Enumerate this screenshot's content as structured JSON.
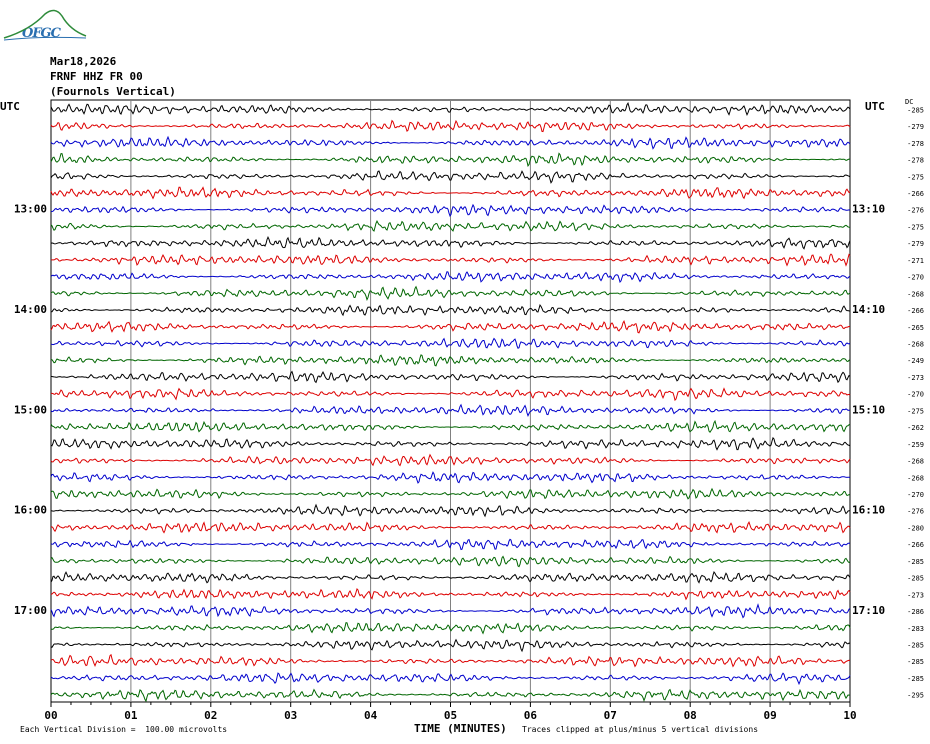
{
  "header": {
    "logo_text": "OFGC",
    "date": "Mar18,2026",
    "station": "FRNF HHZ FR 00",
    "station_name": "(Fournols Vertical)"
  },
  "axis": {
    "left_tz": "UTC",
    "right_tz": "UTC",
    "dc_label": "DC",
    "xlabel": "TIME (MINUTES)",
    "x_ticks": [
      "00",
      "01",
      "02",
      "03",
      "04",
      "05",
      "06",
      "07",
      "08",
      "09",
      "10"
    ],
    "left_hour_labels": [
      "13:00",
      "14:00",
      "15:00",
      "16:00",
      "17:00"
    ],
    "right_hour_labels": [
      "13:10",
      "14:10",
      "15:10",
      "16:10",
      "17:10"
    ]
  },
  "footer": {
    "scale": "Each Vertical Division =  100.00 microvolts",
    "clip_note": "Traces clipped at plus/minus 5 vertical divisions"
  },
  "colors": {
    "trace_cycle": [
      "#000000",
      "#dd0000",
      "#0000cc",
      "#006600"
    ],
    "grid": "#808080"
  },
  "chart_data": {
    "type": "line",
    "title": "",
    "xlabel": "TIME (MINUTES)",
    "ylabel": "",
    "xlim": [
      0,
      10
    ],
    "trace_count": 36,
    "minutes_per_trace": 10,
    "dc_offsets": [
      -285,
      -279,
      -278,
      -278,
      -275,
      -266,
      -276,
      -275,
      -279,
      -271,
      -270,
      -268,
      -266,
      -265,
      -268,
      -249,
      -273,
      -270,
      -275,
      -262,
      -259,
      -268,
      -268,
      -270,
      -276,
      -280,
      -266,
      -285,
      -285,
      -273,
      -286,
      -283,
      -285,
      -285,
      -285,
      -295
    ]
  }
}
